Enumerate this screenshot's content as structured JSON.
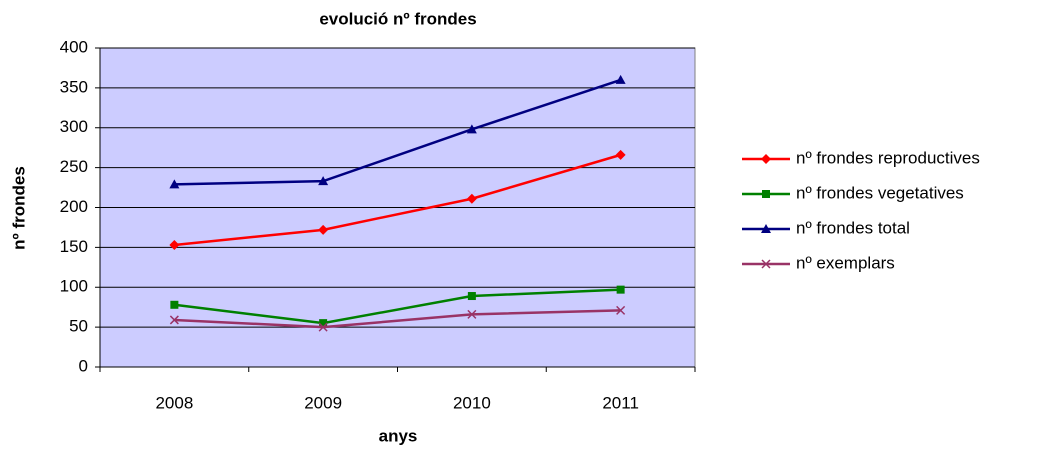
{
  "chart_data": {
    "type": "line",
    "title": "evolució nº frondes",
    "x_label": "anys",
    "y_label": "nº frondes",
    "categories": [
      "2008",
      "2009",
      "2010",
      "2011"
    ],
    "series": [
      {
        "name": "nº frondes reproductives",
        "color": "#ff0000",
        "marker": "diamond",
        "values": [
          153,
          172,
          211,
          266
        ]
      },
      {
        "name": "nº frondes vegetatives",
        "color": "#008000",
        "marker": "square",
        "values": [
          78,
          55,
          89,
          97
        ]
      },
      {
        "name": "nº frondes total",
        "color": "#000080",
        "marker": "triangle",
        "values": [
          229,
          233,
          298,
          360
        ]
      },
      {
        "name": "nº exemplars",
        "color": "#993366",
        "marker": "x",
        "values": [
          59,
          50,
          66,
          71
        ]
      }
    ],
    "ylim": [
      0,
      400
    ],
    "yticks": [
      0,
      50,
      100,
      150,
      200,
      250,
      300,
      350,
      400
    ],
    "grid": true,
    "legend": "right"
  }
}
